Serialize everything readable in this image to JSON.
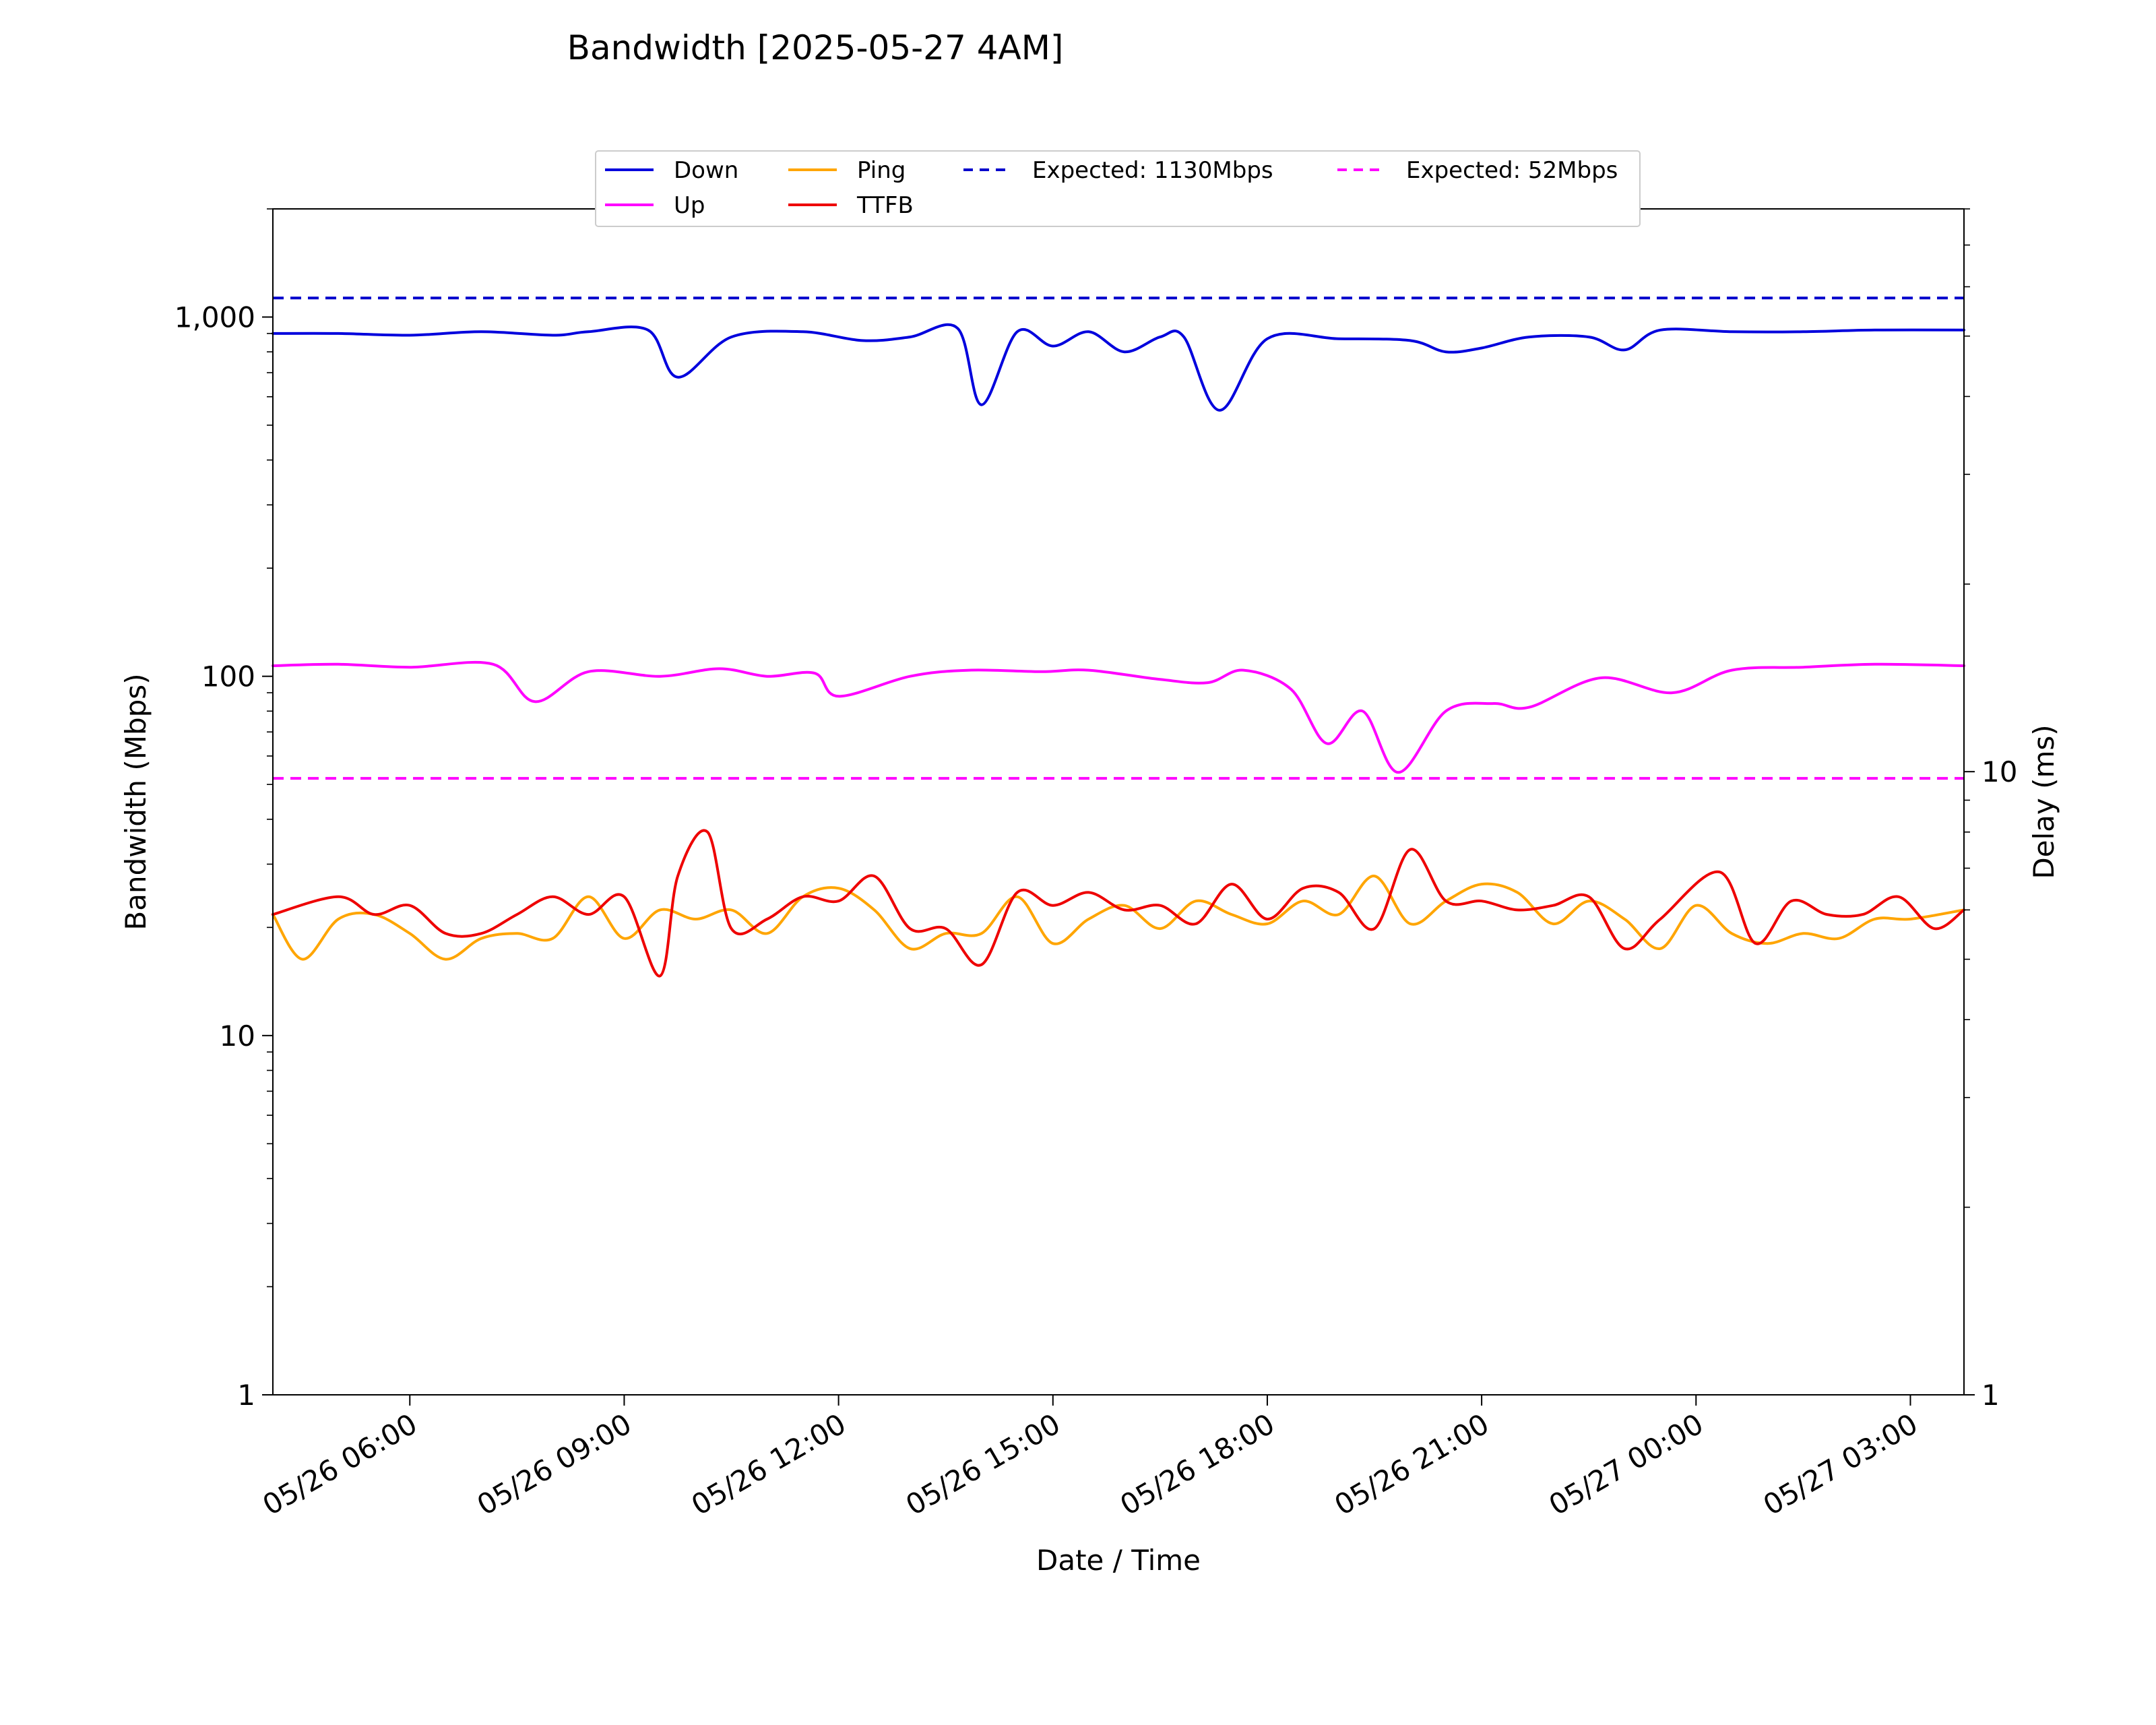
{
  "chart_data": {
    "type": "line",
    "title": "Bandwidth [2025-05-27 4AM]",
    "xlabel": "Date / Time",
    "ylabel": "Bandwidth (Mbps)",
    "y2label": "Delay (ms)",
    "x_range": [
      "2025-05-26T04:05",
      "2025-05-27T03:45"
    ],
    "xticks": [
      {
        "t": "2025-05-26T06:00",
        "label": "05/26 06:00"
      },
      {
        "t": "2025-05-26T09:00",
        "label": "05/26 09:00"
      },
      {
        "t": "2025-05-26T12:00",
        "label": "05/26 12:00"
      },
      {
        "t": "2025-05-26T15:00",
        "label": "05/26 15:00"
      },
      {
        "t": "2025-05-26T18:00",
        "label": "05/26 18:00"
      },
      {
        "t": "2025-05-26T21:00",
        "label": "05/26 21:00"
      },
      {
        "t": "2025-05-27T00:00",
        "label": "05/27 00:00"
      },
      {
        "t": "2025-05-27T03:00",
        "label": "05/27 03:00"
      }
    ],
    "y_scale": "log",
    "ylim": [
      1,
      2000
    ],
    "yticks": [
      {
        "v": 1,
        "label": "1"
      },
      {
        "v": 10,
        "label": "10"
      },
      {
        "v": 100,
        "label": "100"
      },
      {
        "v": 1000,
        "label": "1,000"
      }
    ],
    "y2_scale": "log",
    "y2lim": [
      1,
      80
    ],
    "y2ticks": [
      {
        "v": 1,
        "label": "1"
      },
      {
        "v": 10,
        "label": "10"
      }
    ],
    "grid": false,
    "legend_position": "top-center",
    "series": [
      {
        "name": "Down",
        "axis": "left",
        "color": "#0000dd",
        "dash": false,
        "x": [
          "2025-05-26T04:05",
          "2025-05-26T05:00",
          "2025-05-26T06:00",
          "2025-05-26T07:00",
          "2025-05-26T08:00",
          "2025-05-26T08:30",
          "2025-05-26T09:20",
          "2025-05-26T09:45",
          "2025-05-26T10:30",
          "2025-05-26T11:30",
          "2025-05-26T12:20",
          "2025-05-26T13:00",
          "2025-05-26T13:40",
          "2025-05-26T14:00",
          "2025-05-26T14:30",
          "2025-05-26T15:00",
          "2025-05-26T15:30",
          "2025-05-26T16:00",
          "2025-05-26T16:30",
          "2025-05-26T16:50",
          "2025-05-26T17:20",
          "2025-05-26T18:00",
          "2025-05-26T19:00",
          "2025-05-26T20:00",
          "2025-05-26T20:30",
          "2025-05-26T21:00",
          "2025-05-26T21:40",
          "2025-05-26T22:30",
          "2025-05-26T23:00",
          "2025-05-26T23:30",
          "2025-05-27T00:30",
          "2025-05-27T01:30",
          "2025-05-27T02:30",
          "2025-05-27T03:45"
        ],
        "y": [
          900,
          900,
          890,
          910,
          890,
          910,
          920,
          680,
          880,
          910,
          860,
          880,
          930,
          570,
          910,
          830,
          910,
          800,
          880,
          880,
          550,
          870,
          870,
          860,
          800,
          820,
          880,
          880,
          810,
          920,
          910,
          910,
          920,
          920
        ]
      },
      {
        "name": "Up",
        "axis": "left",
        "color": "#ff00ff",
        "dash": false,
        "x": [
          "2025-05-26T04:05",
          "2025-05-26T05:00",
          "2025-05-26T06:00",
          "2025-05-26T07:10",
          "2025-05-26T07:45",
          "2025-05-26T08:30",
          "2025-05-26T09:30",
          "2025-05-26T10:20",
          "2025-05-26T11:00",
          "2025-05-26T11:40",
          "2025-05-26T12:00",
          "2025-05-26T13:00",
          "2025-05-26T13:50",
          "2025-05-26T14:50",
          "2025-05-26T15:30",
          "2025-05-26T16:30",
          "2025-05-26T17:10",
          "2025-05-26T17:40",
          "2025-05-26T18:20",
          "2025-05-26T18:50",
          "2025-05-26T19:20",
          "2025-05-26T19:50",
          "2025-05-26T20:30",
          "2025-05-26T21:10",
          "2025-05-26T21:40",
          "2025-05-26T22:40",
          "2025-05-26T23:40",
          "2025-05-27T00:30",
          "2025-05-27T01:30",
          "2025-05-27T02:30",
          "2025-05-27T03:45"
        ],
        "y": [
          107,
          108,
          106,
          108,
          85,
          103,
          100,
          105,
          100,
          102,
          88,
          100,
          104,
          103,
          104,
          98,
          96,
          104,
          92,
          65,
          80,
          54,
          80,
          84,
          82,
          99,
          90,
          104,
          106,
          108,
          107
        ]
      },
      {
        "name": "Ping",
        "axis": "right",
        "color": "#ffa500",
        "dash": false,
        "x": [
          "2025-05-26T04:05",
          "2025-05-26T04:30",
          "2025-05-26T05:00",
          "2025-05-26T05:30",
          "2025-05-26T06:00",
          "2025-05-26T06:30",
          "2025-05-26T07:00",
          "2025-05-26T07:30",
          "2025-05-26T08:00",
          "2025-05-26T08:30",
          "2025-05-26T09:00",
          "2025-05-26T09:30",
          "2025-05-26T10:00",
          "2025-05-26T10:30",
          "2025-05-26T11:00",
          "2025-05-26T11:30",
          "2025-05-26T12:00",
          "2025-05-26T12:30",
          "2025-05-26T13:00",
          "2025-05-26T13:30",
          "2025-05-26T14:00",
          "2025-05-26T14:30",
          "2025-05-26T15:00",
          "2025-05-26T15:30",
          "2025-05-26T16:00",
          "2025-05-26T16:30",
          "2025-05-26T17:00",
          "2025-05-26T17:30",
          "2025-05-26T18:00",
          "2025-05-26T18:30",
          "2025-05-26T19:00",
          "2025-05-26T19:30",
          "2025-05-26T20:00",
          "2025-05-26T20:30",
          "2025-05-26T21:00",
          "2025-05-26T21:30",
          "2025-05-26T22:00",
          "2025-05-26T22:30",
          "2025-05-26T23:00",
          "2025-05-26T23:30",
          "2025-05-27T00:00",
          "2025-05-27T00:30",
          "2025-05-27T01:00",
          "2025-05-27T01:30",
          "2025-05-27T02:00",
          "2025-05-27T02:30",
          "2025-05-27T03:00",
          "2025-05-27T03:45"
        ],
        "y": [
          5.9,
          5.0,
          5.8,
          5.9,
          5.5,
          5.0,
          5.4,
          5.5,
          5.4,
          6.3,
          5.4,
          6.0,
          5.8,
          6.0,
          5.5,
          6.3,
          6.5,
          6.0,
          5.2,
          5.5,
          5.5,
          6.3,
          5.3,
          5.8,
          6.1,
          5.6,
          6.2,
          5.9,
          5.7,
          6.2,
          5.9,
          6.8,
          5.7,
          6.2,
          6.6,
          6.4,
          5.7,
          6.2,
          5.8,
          5.2,
          6.1,
          5.5,
          5.3,
          5.5,
          5.4,
          5.8,
          5.8,
          6.0
        ]
      },
      {
        "name": "TTFB",
        "axis": "right",
        "color": "#ee0000",
        "dash": false,
        "x": [
          "2025-05-26T04:05",
          "2025-05-26T05:00",
          "2025-05-26T05:30",
          "2025-05-26T06:00",
          "2025-05-26T06:30",
          "2025-05-26T07:00",
          "2025-05-26T07:30",
          "2025-05-26T08:00",
          "2025-05-26T08:30",
          "2025-05-26T09:00",
          "2025-05-26T09:30",
          "2025-05-26T09:45",
          "2025-05-26T10:10",
          "2025-05-26T10:30",
          "2025-05-26T11:00",
          "2025-05-26T11:30",
          "2025-05-26T12:00",
          "2025-05-26T12:30",
          "2025-05-26T13:00",
          "2025-05-26T13:30",
          "2025-05-26T14:00",
          "2025-05-26T14:30",
          "2025-05-26T15:00",
          "2025-05-26T15:30",
          "2025-05-26T16:00",
          "2025-05-26T16:30",
          "2025-05-26T17:00",
          "2025-05-26T17:30",
          "2025-05-26T18:00",
          "2025-05-26T18:30",
          "2025-05-26T19:00",
          "2025-05-26T19:30",
          "2025-05-26T20:00",
          "2025-05-26T20:30",
          "2025-05-26T21:00",
          "2025-05-26T21:30",
          "2025-05-26T22:00",
          "2025-05-26T22:30",
          "2025-05-26T23:00",
          "2025-05-26T23:30",
          "2025-05-27T00:20",
          "2025-05-27T00:50",
          "2025-05-27T01:20",
          "2025-05-27T01:50",
          "2025-05-27T02:20",
          "2025-05-27T02:50",
          "2025-05-27T03:20",
          "2025-05-27T03:45"
        ],
        "y": [
          5.9,
          6.3,
          5.9,
          6.1,
          5.5,
          5.5,
          5.9,
          6.3,
          5.9,
          6.3,
          4.7,
          6.8,
          8.0,
          5.6,
          5.8,
          6.3,
          6.2,
          6.8,
          5.6,
          5.6,
          4.9,
          6.4,
          6.1,
          6.4,
          6.0,
          6.1,
          5.7,
          6.6,
          5.8,
          6.5,
          6.4,
          5.6,
          7.5,
          6.2,
          6.2,
          6.0,
          6.1,
          6.3,
          5.2,
          5.8,
          6.9,
          5.3,
          6.2,
          5.9,
          5.9,
          6.3,
          5.6,
          6.0
        ]
      },
      {
        "name": "Expected: 1130Mbps",
        "axis": "left",
        "color": "#0000cc",
        "dash": true,
        "x": [
          "2025-05-26T04:05",
          "2025-05-27T03:45"
        ],
        "y": [
          1130,
          1130
        ]
      },
      {
        "name": "Expected: 52Mbps",
        "axis": "left",
        "color": "#ff00ff",
        "dash": true,
        "x": [
          "2025-05-26T04:05",
          "2025-05-27T03:45"
        ],
        "y": [
          52,
          52
        ]
      }
    ]
  }
}
